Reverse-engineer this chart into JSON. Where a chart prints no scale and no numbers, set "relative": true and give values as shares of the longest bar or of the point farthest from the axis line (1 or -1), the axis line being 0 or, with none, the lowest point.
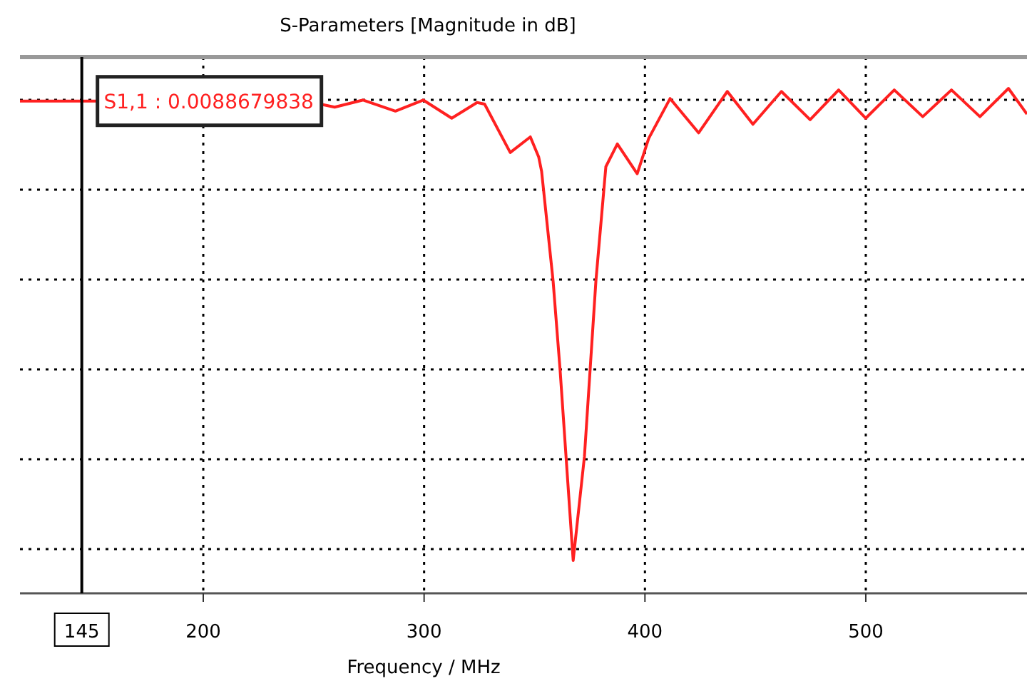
{
  "chart_data": {
    "type": "line",
    "title": "S-Parameters [Magnitude in dB]",
    "xlabel": "Frequency / MHz",
    "relative": true,
    "grid": true,
    "marker": "none",
    "line_style": "solid",
    "xlim": [
      117,
      573
    ],
    "xticks": [
      200,
      300,
      400,
      500
    ],
    "x": [
      117,
      151.5,
      253,
      259.5,
      272.4,
      287,
      299.6,
      312.5,
      324,
      327.4,
      339,
      348.1,
      351.9,
      353.2,
      358.4,
      361.6,
      367.5,
      372.6,
      377.8,
      382.3,
      387.5,
      396.5,
      401.7,
      411.4,
      424.3,
      437.3,
      448.9,
      461.8,
      474.8,
      487.7,
      500,
      512.9,
      525.8,
      538.8,
      551.7,
      564.6,
      573
    ],
    "series": [
      {
        "color": "#ff2020",
        "values": [
          0.975,
          0.975,
          0.969,
          0.963,
          0.977,
          0.955,
          0.977,
          0.941,
          0.972,
          0.969,
          0.873,
          0.904,
          0.864,
          0.836,
          0.619,
          0.441,
          0.065,
          0.271,
          0.619,
          0.845,
          0.89,
          0.831,
          0.901,
          0.98,
          0.912,
          0.994,
          0.929,
          0.994,
          0.938,
          0.997,
          0.941,
          0.997,
          0.944,
          0.997,
          0.944,
          1.0,
          0.949
        ]
      }
    ],
    "ref_lines": [
      {
        "axis": "x",
        "value": 145,
        "label": "145",
        "color": "#000000"
      }
    ],
    "annotations": [
      {
        "text": "S1,1 : 0.0088679838",
        "x": 145,
        "y": 0.975
      }
    ]
  }
}
